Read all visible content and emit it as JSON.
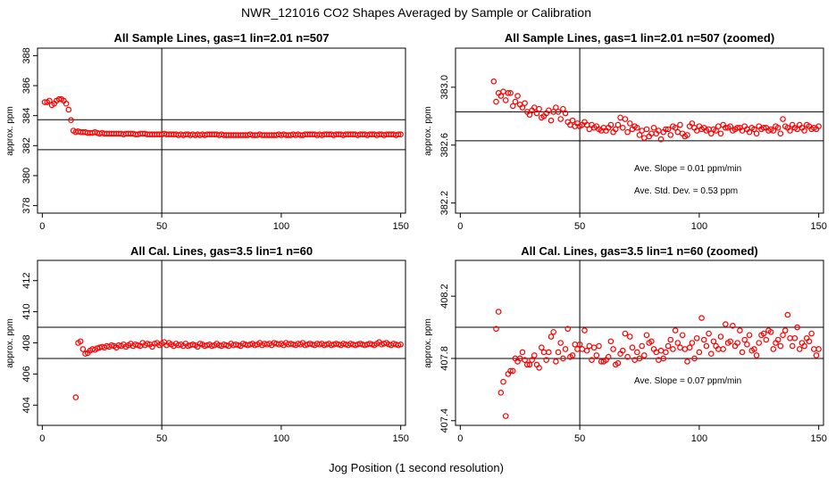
{
  "title": "NWR_121016  CO2 Shapes Averaged by Sample or Calibration",
  "xlabel": "Jog Position (1 second resolution)",
  "colors": {
    "points": "#ff0000",
    "axes": "#000000"
  },
  "chart_data": [
    {
      "type": "scatter",
      "title": "All Sample Lines, gas=1 lin=2.01 n=507",
      "ylabel": "approx. ppm",
      "xlim": [
        -2,
        152
      ],
      "ylim": [
        377.5,
        388.5
      ],
      "xticks": [
        "0",
        "50",
        "100",
        "150"
      ],
      "yticks": [
        "378",
        "380",
        "382",
        "384",
        "386",
        "388"
      ],
      "vline": 50,
      "hlines": [
        383.73,
        381.73
      ],
      "annotations": [],
      "x": [
        1,
        2,
        3,
        4,
        5,
        6,
        7,
        8,
        9,
        10,
        11,
        12,
        13,
        14,
        15,
        16,
        17,
        18,
        19,
        20,
        21,
        22,
        23,
        24,
        25,
        26,
        27,
        28,
        29,
        30,
        31,
        32,
        33,
        34,
        35,
        36,
        37,
        38,
        39,
        40,
        41,
        42,
        43,
        44,
        45,
        46,
        47,
        48,
        49,
        50,
        51,
        52,
        53,
        54,
        55,
        56,
        57,
        58,
        59,
        60,
        61,
        62,
        63,
        64,
        65,
        66,
        67,
        68,
        69,
        70,
        71,
        72,
        73,
        74,
        75,
        76,
        77,
        78,
        79,
        80,
        81,
        82,
        83,
        84,
        85,
        86,
        87,
        88,
        89,
        90,
        91,
        92,
        93,
        94,
        95,
        96,
        97,
        98,
        99,
        100,
        101,
        102,
        103,
        104,
        105,
        106,
        107,
        108,
        109,
        110,
        111,
        112,
        113,
        114,
        115,
        116,
        117,
        118,
        119,
        120,
        121,
        122,
        123,
        124,
        125,
        126,
        127,
        128,
        129,
        130,
        131,
        132,
        133,
        134,
        135,
        136,
        137,
        138,
        139,
        140,
        141,
        142,
        143,
        144,
        145,
        146,
        147,
        148,
        149,
        150
      ],
      "y": [
        384.9,
        384.9,
        385.0,
        384.7,
        384.8,
        385.0,
        385.1,
        385.1,
        385.0,
        384.8,
        384.4,
        383.7,
        383.0,
        382.9,
        382.95,
        382.9,
        382.9,
        382.9,
        382.85,
        382.85,
        382.85,
        382.9,
        382.85,
        382.8,
        382.85,
        382.8,
        382.8,
        382.8,
        382.8,
        382.8,
        382.8,
        382.8,
        382.8,
        382.75,
        382.8,
        382.8,
        382.8,
        382.8,
        382.75,
        382.75,
        382.8,
        382.8,
        382.8,
        382.75,
        382.75,
        382.75,
        382.75,
        382.75,
        382.75,
        382.75,
        382.8,
        382.75,
        382.75,
        382.75,
        382.75,
        382.75,
        382.7,
        382.75,
        382.7,
        382.75,
        382.75,
        382.7,
        382.75,
        382.7,
        382.75,
        382.7,
        382.75,
        382.7,
        382.75,
        382.75,
        382.75,
        382.75,
        382.75,
        382.7,
        382.75,
        382.7,
        382.7,
        382.7,
        382.7,
        382.7,
        382.7,
        382.7,
        382.7,
        382.7,
        382.7,
        382.7,
        382.75,
        382.7,
        382.7,
        382.7,
        382.75,
        382.7,
        382.7,
        382.7,
        382.7,
        382.7,
        382.7,
        382.7,
        382.75,
        382.7,
        382.75,
        382.7,
        382.7,
        382.7,
        382.75,
        382.7,
        382.75,
        382.7,
        382.7,
        382.75,
        382.75,
        382.75,
        382.75,
        382.75,
        382.7,
        382.75,
        382.7,
        382.75,
        382.75,
        382.75,
        382.75,
        382.7,
        382.75,
        382.75,
        382.75,
        382.7,
        382.75,
        382.75,
        382.75,
        382.75,
        382.75,
        382.7,
        382.75,
        382.75,
        382.75,
        382.7,
        382.75,
        382.75,
        382.75,
        382.7,
        382.75,
        382.75,
        382.7,
        382.75,
        382.75,
        382.75,
        382.75,
        382.7,
        382.75,
        382.75
      ]
    },
    {
      "type": "scatter",
      "title": "All Sample Lines, gas=1 lin=2.01 n=507 (zoomed)",
      "ylabel": "approx. ppm",
      "xlim": [
        -2,
        152
      ],
      "ylim": [
        382.13,
        383.27
      ],
      "xticks": [
        "0",
        "50",
        "100",
        "150"
      ],
      "yticks": [
        "382.2",
        "382.6",
        "383.0"
      ],
      "vline": 50,
      "hlines": [
        382.83,
        382.63
      ],
      "annotations": [
        "Ave. Slope =  0.01  ppm/min",
        "Ave. Std. Dev. =  0.53  ppm"
      ],
      "x": [
        14,
        15,
        16,
        17,
        18,
        19,
        20,
        21,
        22,
        23,
        24,
        25,
        26,
        27,
        28,
        29,
        30,
        31,
        32,
        33,
        34,
        35,
        36,
        37,
        38,
        39,
        40,
        41,
        42,
        43,
        44,
        45,
        46,
        47,
        48,
        49,
        50,
        51,
        52,
        53,
        54,
        55,
        56,
        57,
        58,
        59,
        60,
        61,
        62,
        63,
        64,
        65,
        66,
        67,
        68,
        69,
        70,
        71,
        72,
        73,
        74,
        75,
        76,
        77,
        78,
        79,
        80,
        81,
        82,
        83,
        84,
        85,
        86,
        87,
        88,
        89,
        90,
        91,
        92,
        93,
        94,
        95,
        96,
        97,
        98,
        99,
        100,
        101,
        102,
        103,
        104,
        105,
        106,
        107,
        108,
        109,
        110,
        111,
        112,
        113,
        114,
        115,
        116,
        117,
        118,
        119,
        120,
        121,
        122,
        123,
        124,
        125,
        126,
        127,
        128,
        129,
        130,
        131,
        132,
        133,
        134,
        135,
        136,
        137,
        138,
        139,
        140,
        141,
        142,
        143,
        144,
        145,
        146,
        147,
        148,
        149,
        150
      ],
      "y": [
        383.04,
        382.9,
        382.96,
        382.94,
        382.97,
        382.91,
        382.96,
        382.96,
        382.87,
        382.9,
        382.94,
        382.88,
        382.86,
        382.89,
        382.83,
        382.81,
        382.84,
        382.86,
        382.82,
        382.85,
        382.79,
        382.8,
        382.82,
        382.84,
        382.77,
        382.83,
        382.86,
        382.83,
        382.78,
        382.85,
        382.82,
        382.76,
        382.74,
        382.77,
        382.73,
        382.75,
        382.73,
        382.74,
        382.76,
        382.74,
        382.71,
        382.74,
        382.72,
        382.73,
        382.71,
        382.7,
        382.72,
        382.7,
        382.72,
        382.74,
        382.69,
        382.71,
        382.74,
        382.79,
        382.72,
        382.78,
        382.69,
        382.75,
        382.71,
        382.73,
        382.72,
        382.67,
        382.7,
        382.65,
        382.71,
        382.66,
        382.68,
        382.72,
        382.68,
        382.7,
        382.64,
        382.69,
        382.71,
        382.71,
        382.67,
        382.73,
        382.72,
        382.69,
        382.74,
        382.68,
        382.66,
        382.67,
        382.73,
        382.75,
        382.72,
        382.7,
        382.73,
        382.71,
        382.72,
        382.7,
        382.71,
        382.68,
        382.71,
        382.7,
        382.73,
        382.68,
        382.74,
        382.72,
        382.72,
        382.73,
        382.7,
        382.71,
        382.72,
        382.72,
        382.7,
        382.73,
        382.71,
        382.69,
        382.72,
        382.71,
        382.68,
        382.73,
        382.71,
        382.72,
        382.72,
        382.7,
        382.71,
        382.7,
        382.73,
        382.72,
        382.68,
        382.78,
        382.73,
        382.72,
        382.7,
        382.74,
        382.72,
        382.71,
        382.74,
        382.72,
        382.7,
        382.74,
        382.73,
        382.71,
        382.72,
        382.71,
        382.73
      ]
    },
    {
      "type": "scatter",
      "title": "All Cal. Lines, gas=3.5 lin=1 n=60",
      "ylabel": "approx. ppm",
      "xlim": [
        -2,
        152
      ],
      "ylim": [
        402.7,
        413.3
      ],
      "xticks": [
        "0",
        "50",
        "100",
        "150"
      ],
      "yticks": [
        "404",
        "406",
        "408",
        "410",
        "412"
      ],
      "vline": 50,
      "hlines": [
        409.0,
        407.0
      ],
      "annotations": [],
      "x": [
        14,
        15,
        16,
        17,
        18,
        19,
        20,
        21,
        22,
        23,
        24,
        25,
        26,
        27,
        28,
        29,
        30,
        31,
        32,
        33,
        34,
        35,
        36,
        37,
        38,
        39,
        40,
        41,
        42,
        43,
        44,
        45,
        46,
        47,
        48,
        49,
        50,
        51,
        52,
        53,
        54,
        55,
        56,
        57,
        58,
        59,
        60,
        61,
        62,
        63,
        64,
        65,
        66,
        67,
        68,
        69,
        70,
        71,
        72,
        73,
        74,
        75,
        76,
        77,
        78,
        79,
        80,
        81,
        82,
        83,
        84,
        85,
        86,
        87,
        88,
        89,
        90,
        91,
        92,
        93,
        94,
        95,
        96,
        97,
        98,
        99,
        100,
        101,
        102,
        103,
        104,
        105,
        106,
        107,
        108,
        109,
        110,
        111,
        112,
        113,
        114,
        115,
        116,
        117,
        118,
        119,
        120,
        121,
        122,
        123,
        124,
        125,
        126,
        127,
        128,
        129,
        130,
        131,
        132,
        133,
        134,
        135,
        136,
        137,
        138,
        139,
        140,
        141,
        142,
        143,
        144,
        145,
        146,
        147,
        148,
        149,
        150
      ],
      "y": [
        404.5,
        408.0,
        408.1,
        407.6,
        407.3,
        407.35,
        407.5,
        407.6,
        407.55,
        407.65,
        407.7,
        407.75,
        407.7,
        407.8,
        407.75,
        407.85,
        407.8,
        407.7,
        407.85,
        407.8,
        407.9,
        407.75,
        407.85,
        407.95,
        407.8,
        407.9,
        407.85,
        407.8,
        408.0,
        407.85,
        407.95,
        407.9,
        407.75,
        407.95,
        408.0,
        407.85,
        407.95,
        408.05,
        407.85,
        408.0,
        407.9,
        407.8,
        407.95,
        407.85,
        407.9,
        407.8,
        407.95,
        407.8,
        407.85,
        407.9,
        407.85,
        407.75,
        407.95,
        407.9,
        407.8,
        407.85,
        407.9,
        407.8,
        407.85,
        407.95,
        407.85,
        407.8,
        407.9,
        407.85,
        407.8,
        407.95,
        407.85,
        407.9,
        407.85,
        407.8,
        407.95,
        407.9,
        407.85,
        407.9,
        407.95,
        407.85,
        407.9,
        408.0,
        407.85,
        407.95,
        407.9,
        407.95,
        407.85,
        408.0,
        407.95,
        407.9,
        407.95,
        407.85,
        408.0,
        407.9,
        407.95,
        407.9,
        407.85,
        407.95,
        407.9,
        408.0,
        407.85,
        407.9,
        407.95,
        407.9,
        407.85,
        407.95,
        407.9,
        407.95,
        407.85,
        407.9,
        407.95,
        407.85,
        407.9,
        407.95,
        407.9,
        407.85,
        407.95,
        407.9,
        407.85,
        407.95,
        407.9,
        407.85,
        407.9,
        407.95,
        407.9,
        407.85,
        407.9,
        407.95,
        407.9,
        407.85,
        407.95,
        408.05,
        407.9,
        407.95,
        408.0,
        407.9,
        407.85,
        407.95,
        407.9,
        407.85,
        407.9
      ]
    },
    {
      "type": "scatter",
      "title": "All Cal. Lines, gas=3.5 lin=1 n=60 (zoomed)",
      "ylabel": "approx. ppm",
      "xlim": [
        -2,
        152
      ],
      "ylim": [
        407.37,
        408.43
      ],
      "xticks": [
        "0",
        "50",
        "100",
        "150"
      ],
      "yticks": [
        "407.4",
        "407.8",
        "408.2"
      ],
      "vline": 50,
      "hlines": [
        408.0,
        407.8
      ],
      "annotations": [
        "Ave. Slope =  0.07  ppm/min"
      ],
      "x": [
        15,
        16,
        17,
        18,
        19,
        20,
        21,
        22,
        23,
        24,
        25,
        26,
        27,
        28,
        29,
        30,
        31,
        32,
        33,
        34,
        35,
        36,
        37,
        38,
        39,
        40,
        41,
        42,
        43,
        44,
        45,
        46,
        47,
        48,
        49,
        50,
        51,
        52,
        53,
        54,
        55,
        56,
        57,
        58,
        59,
        60,
        61,
        62,
        63,
        64,
        65,
        66,
        67,
        68,
        69,
        70,
        71,
        72,
        73,
        74,
        75,
        76,
        77,
        78,
        79,
        80,
        81,
        82,
        83,
        84,
        85,
        86,
        87,
        88,
        89,
        90,
        91,
        92,
        93,
        94,
        95,
        96,
        97,
        98,
        99,
        100,
        101,
        102,
        103,
        104,
        105,
        106,
        107,
        108,
        109,
        110,
        111,
        112,
        113,
        114,
        115,
        116,
        117,
        118,
        119,
        120,
        121,
        122,
        123,
        124,
        125,
        126,
        127,
        128,
        129,
        130,
        131,
        132,
        133,
        134,
        135,
        136,
        137,
        138,
        139,
        140,
        141,
        142,
        143,
        144,
        145,
        146,
        147,
        148,
        149,
        150
      ],
      "y": [
        407.99,
        408.1,
        407.58,
        407.65,
        407.43,
        407.7,
        407.72,
        407.72,
        407.8,
        407.78,
        407.8,
        407.84,
        407.79,
        407.76,
        407.76,
        407.79,
        407.82,
        407.76,
        407.74,
        407.87,
        407.84,
        407.79,
        407.84,
        407.94,
        407.97,
        407.78,
        407.84,
        407.9,
        407.8,
        407.86,
        407.99,
        407.81,
        407.82,
        407.89,
        407.86,
        407.89,
        407.86,
        407.98,
        407.85,
        407.88,
        407.79,
        407.87,
        407.82,
        407.88,
        407.78,
        407.78,
        407.79,
        407.81,
        407.91,
        407.86,
        407.76,
        407.77,
        407.83,
        407.85,
        407.96,
        407.81,
        407.94,
        407.87,
        407.79,
        407.84,
        407.8,
        407.88,
        407.82,
        407.95,
        407.9,
        407.91,
        407.86,
        407.84,
        407.79,
        407.85,
        407.8,
        407.84,
        407.88,
        407.92,
        407.86,
        407.98,
        407.9,
        407.87,
        407.95,
        407.86,
        407.78,
        407.87,
        407.9,
        407.8,
        407.93,
        407.84,
        408.06,
        407.92,
        407.88,
        407.96,
        407.83,
        407.91,
        407.88,
        407.86,
        407.94,
        407.86,
        408.02,
        407.9,
        407.91,
        408.01,
        407.88,
        407.9,
        407.98,
        407.84,
        407.92,
        407.89,
        407.95,
        407.85,
        407.86,
        407.82,
        407.9,
        407.95,
        407.96,
        407.92,
        407.98,
        407.97,
        407.86,
        407.9,
        407.92,
        407.88,
        407.95,
        407.98,
        408.08,
        407.93,
        407.88,
        407.93,
        408.0,
        407.86,
        407.9,
        407.88,
        407.93,
        407.91,
        407.96,
        407.86,
        407.82,
        407.86
      ]
    }
  ]
}
